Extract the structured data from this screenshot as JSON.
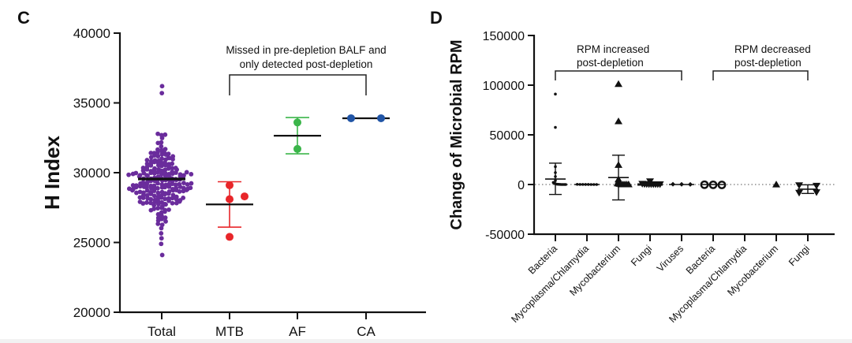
{
  "chart_data": [
    {
      "panel": "C",
      "type": "scatter",
      "title": "",
      "xlabel": "",
      "ylabel": "H Index",
      "ylim": [
        20000,
        40000
      ],
      "yticks": [
        "20000",
        "25000",
        "30000",
        "35000",
        "40000"
      ],
      "categories": [
        "Total",
        "MTB",
        "AF",
        "CA"
      ],
      "colors": {
        "Total": "#6a2c9c",
        "MTB": "#e8262a",
        "AF": "#3bb54a",
        "CA": "#2155a6"
      },
      "annotation": {
        "lines": [
          "Missed in pre-depletion BALF and",
          "only detected post-depletion"
        ],
        "bracket_categories": [
          "MTB",
          "CA"
        ]
      },
      "series": [
        {
          "name": "Total",
          "mean": 29550,
          "n_approx": 220,
          "min": 24100,
          "max": 36200,
          "distribution": "dense swarm centered near 29500, spread ~25000-34500, outliers 35700 and 36200, low outlier 24100"
        },
        {
          "name": "MTB",
          "values": [
            29100,
            28100,
            28300,
            25400
          ],
          "mean": 27725,
          "error_upper": 29350,
          "error_lower": 26100
        },
        {
          "name": "AF",
          "values": [
            33600,
            31700
          ],
          "mean": 32650,
          "error_upper": 33950,
          "error_lower": 31350
        },
        {
          "name": "CA",
          "values": [
            33900,
            33900
          ],
          "mean": 33900
        }
      ]
    },
    {
      "panel": "D",
      "type": "scatter",
      "title": "",
      "xlabel": "",
      "ylabel": "Change of Microbial RPM",
      "ylim": [
        -50000,
        150000
      ],
      "yticks": [
        "-50000",
        "0",
        "50000",
        "100000",
        "150000"
      ],
      "reference_line": 0,
      "categories": [
        "Bacteria",
        "Mycoplasma/Chlamydia",
        "Mycobacterium",
        "Fungi",
        "Viruses",
        "Bacteria",
        "Mycoplasma/Chlamydia",
        "Mycobacterium",
        "Fungi"
      ],
      "groups": [
        {
          "label_lines": [
            "RPM increased",
            "post-depletion"
          ],
          "category_indices": [
            0,
            4
          ]
        },
        {
          "label_lines": [
            "RPM decreased",
            "post-depletion"
          ],
          "category_indices": [
            5,
            8
          ]
        }
      ],
      "series": [
        {
          "name": "Bacteria (increased)",
          "marker": "dot-small",
          "values": [
            91000,
            57500,
            18000,
            12000,
            8000,
            4000,
            2000,
            1000,
            500,
            300,
            200,
            100,
            0,
            0,
            0,
            0
          ],
          "mean": 5500,
          "error_upper": 21500,
          "error_lower": -10000
        },
        {
          "name": "Mycoplasma/Chlamydia (increased)",
          "marker": "dot-small",
          "values": [
            200,
            100,
            100,
            50,
            50,
            0,
            0,
            0
          ],
          "mean": 50
        },
        {
          "name": "Mycobacterium (increased)",
          "marker": "triangle",
          "values": [
            101000,
            63500,
            19500,
            5000,
            3000,
            1000,
            500,
            0,
            0,
            0,
            0,
            0
          ],
          "mean": 7000,
          "error_upper": 29500,
          "error_lower": -15500
        },
        {
          "name": "Fungi (increased)",
          "marker": "inverted-triangle",
          "values": [
            3000,
            500,
            200,
            100,
            0,
            0,
            0,
            0,
            0,
            0
          ],
          "mean": 300
        },
        {
          "name": "Viruses (increased)",
          "marker": "diamond",
          "values": [
            300,
            200,
            100
          ],
          "mean": 200
        },
        {
          "name": "Bacteria (decreased)",
          "marker": "circle",
          "values": [
            -200,
            -300,
            -400
          ],
          "mean": -300
        },
        {
          "name": "Mycoplasma/Chlamydia (decreased)",
          "marker": "none",
          "values": []
        },
        {
          "name": "Mycobacterium (decreased)",
          "marker": "triangle",
          "values": [
            -100
          ]
        },
        {
          "name": "Fungi (decreased)",
          "marker": "inverted-triangle",
          "values": [
            -1000,
            -1500,
            -8500,
            -8000
          ],
          "mean": -4750,
          "error_upper": -300,
          "error_lower": -9000
        }
      ]
    }
  ]
}
